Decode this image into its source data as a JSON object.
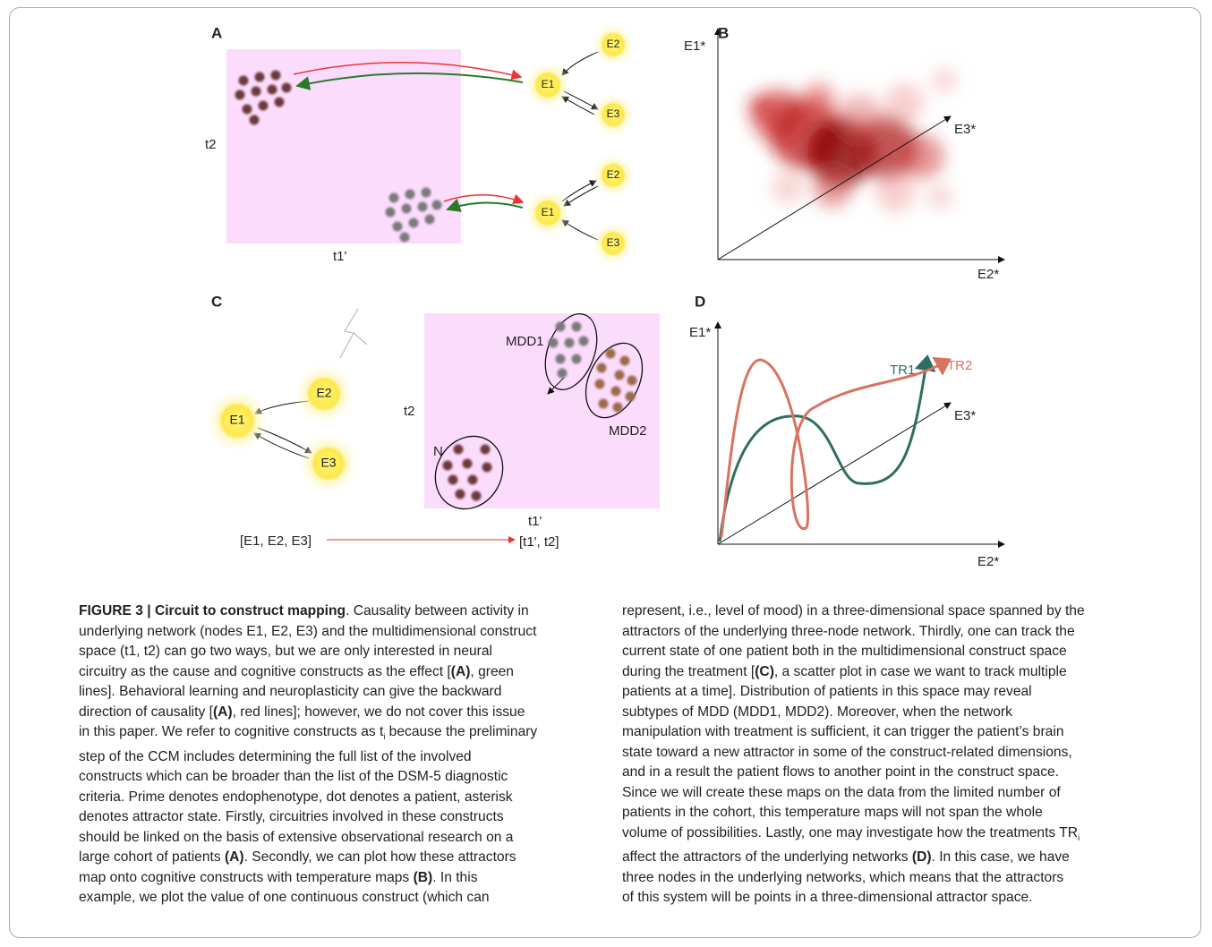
{
  "panels": {
    "A": {
      "label": "A",
      "y_axis": "t2",
      "x_axis": "t1'",
      "top_nodes": [
        "E1",
        "E2",
        "E3"
      ],
      "bottom_nodes": [
        "E1",
        "E2",
        "E3"
      ]
    },
    "B": {
      "label": "B",
      "axes": [
        "E1*",
        "E2*",
        "E3*"
      ]
    },
    "C": {
      "label": "C",
      "nodes": [
        "E1",
        "E2",
        "E3"
      ],
      "y_axis": "t2",
      "x_axis": "t1'",
      "clusters": [
        "MDD1",
        "MDD2",
        "N"
      ],
      "mapping_from": "[E1, E2, E3]",
      "mapping_to": "[t1', t2]"
    },
    "D": {
      "label": "D",
      "axes": [
        "E1*",
        "E2*",
        "E3*"
      ],
      "trajectories": [
        "TR1",
        "TR2"
      ]
    }
  },
  "caption": {
    "columns": [
      [
        [
          {
            "bold": "FIGURE 3 | Circuit to construct mapping"
          },
          ". Causality between activity in"
        ],
        [
          "underlying network (nodes E1, E2, E3) and the multidimensional construct"
        ],
        [
          "space (t1, t2) can go two ways, but we are only interested in neural"
        ],
        [
          "circuitry as the cause and cognitive constructs as the effect [",
          {
            "bold": "(A)"
          },
          ", green"
        ],
        [
          "lines]. Behavioral learning and neuroplasticity can give the backward"
        ],
        [
          "direction of causality [",
          {
            "bold": "(A)"
          },
          ", red lines]; however, we do not cover this issue"
        ],
        [
          "in this paper. We refer to cognitive constructs as t",
          {
            "sub": "i"
          },
          " because the preliminary"
        ],
        [
          "step of the CCM includes determining the full list of the involved"
        ],
        [
          "constructs which can be broader than the list of the DSM-5 diagnostic"
        ],
        [
          "criteria. Prime denotes endophenotype, dot denotes a patient, asterisk"
        ],
        [
          "denotes attractor state. Firstly, circuitries involved in these constructs"
        ],
        [
          "should be linked on the basis of extensive observational research on a"
        ],
        [
          "large cohort of patients ",
          {
            "bold": "(A)"
          },
          ". Secondly, we can plot how these attractors"
        ],
        [
          "map onto cognitive constructs with temperature maps ",
          {
            "bold": "(B)"
          },
          ". In this"
        ],
        [
          "example, we plot the value of one continuous construct (which can"
        ]
      ],
      [
        [
          "represent, i.e., level of mood) in a three-dimensional space spanned by the"
        ],
        [
          "attractors of the underlying three-node network. Thirdly, one can track the"
        ],
        [
          "current state of one patient both in the multidimensional construct space"
        ],
        [
          "during the treatment [",
          {
            "bold": "(C)"
          },
          ", a scatter plot in case we want to track multiple"
        ],
        [
          "patients at a time]. Distribution of patients in this space may reveal"
        ],
        [
          "subtypes of MDD (MDD1, MDD2). Moreover, when the network"
        ],
        [
          "manipulation with treatment is sufficient, it can trigger the patient’s brain"
        ],
        [
          "state toward a new attractor in some of the construct-related dimensions,"
        ],
        [
          "and in a result the patient flows to another point in the construct space."
        ],
        [
          "Since we will create these maps on the data from the limited number of"
        ],
        [
          "patients in the cohort, this temperature maps will not span the whole"
        ],
        [
          "volume of possibilities. Lastly, one may investigate how the treatments TR",
          {
            "sub": "i"
          }
        ],
        [
          "affect the attractors of the underlying networks ",
          {
            "bold": "(D)"
          },
          ". In this case, we have"
        ],
        [
          "three nodes in the underlying networks, which means that the attractors"
        ],
        [
          "of this system will be points in a three-dimensional attractor space."
        ]
      ]
    ]
  }
}
